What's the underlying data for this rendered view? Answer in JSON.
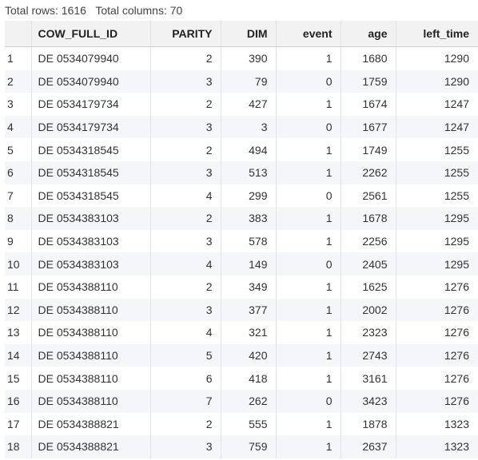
{
  "summary": {
    "rows_label": "Total rows: 1616",
    "cols_label": "Total columns: 70"
  },
  "table": {
    "columns": [
      "",
      "COW_FULL_ID",
      "PARITY",
      "DIM",
      "event",
      "age",
      "left_time"
    ],
    "rows": [
      [
        "1",
        "DE 0534079940",
        "2",
        "390",
        "1",
        "1680",
        "1290"
      ],
      [
        "2",
        "DE 0534079940",
        "3",
        "79",
        "0",
        "1759",
        "1290"
      ],
      [
        "3",
        "DE 0534179734",
        "2",
        "427",
        "1",
        "1674",
        "1247"
      ],
      [
        "4",
        "DE 0534179734",
        "3",
        "3",
        "0",
        "1677",
        "1247"
      ],
      [
        "5",
        "DE 0534318545",
        "2",
        "494",
        "1",
        "1749",
        "1255"
      ],
      [
        "6",
        "DE 0534318545",
        "3",
        "513",
        "1",
        "2262",
        "1255"
      ],
      [
        "7",
        "DE 0534318545",
        "4",
        "299",
        "0",
        "2561",
        "1255"
      ],
      [
        "8",
        "DE 0534383103",
        "2",
        "383",
        "1",
        "1678",
        "1295"
      ],
      [
        "9",
        "DE 0534383103",
        "3",
        "578",
        "1",
        "2256",
        "1295"
      ],
      [
        "10",
        "DE 0534383103",
        "4",
        "149",
        "0",
        "2405",
        "1295"
      ],
      [
        "11",
        "DE 0534388110",
        "2",
        "349",
        "1",
        "1625",
        "1276"
      ],
      [
        "12",
        "DE 0534388110",
        "3",
        "377",
        "1",
        "2002",
        "1276"
      ],
      [
        "13",
        "DE 0534388110",
        "4",
        "321",
        "1",
        "2323",
        "1276"
      ],
      [
        "14",
        "DE 0534388110",
        "5",
        "420",
        "1",
        "2743",
        "1276"
      ],
      [
        "15",
        "DE 0534388110",
        "6",
        "418",
        "1",
        "3161",
        "1276"
      ],
      [
        "16",
        "DE 0534388110",
        "7",
        "262",
        "0",
        "3423",
        "1276"
      ],
      [
        "17",
        "DE 0534388821",
        "2",
        "555",
        "1",
        "1878",
        "1323"
      ],
      [
        "18",
        "DE 0534388821",
        "3",
        "759",
        "1",
        "2637",
        "1323"
      ]
    ]
  }
}
